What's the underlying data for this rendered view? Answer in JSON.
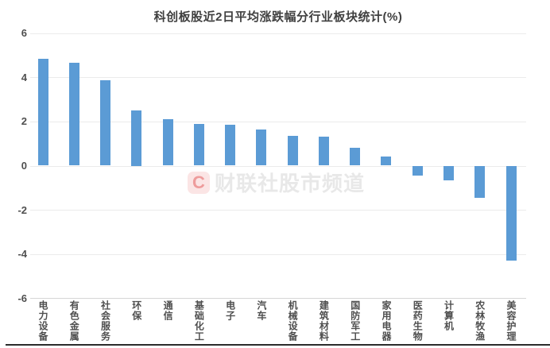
{
  "watermark": {
    "logo_letter": "C",
    "text": "财联社股市频道"
  },
  "chart_data": {
    "type": "bar",
    "title": "科创板股近2日平均涨跌幅分行业板块统计(%)",
    "categories": [
      "电力设备",
      "有色金属",
      "社会服务",
      "环保",
      "通信",
      "基础化工",
      "电子",
      "汽车",
      "机械设备",
      "建筑材料",
      "国防军工",
      "家用电器",
      "医药生物",
      "计算机",
      "农林牧渔",
      "美容护理"
    ],
    "values": [
      4.85,
      4.65,
      3.85,
      2.5,
      2.1,
      1.9,
      1.85,
      1.65,
      1.35,
      1.3,
      0.8,
      0.4,
      -0.45,
      -0.65,
      -1.45,
      -4.3
    ],
    "xlabel": "",
    "ylabel": "",
    "yticks": [
      6,
      4,
      2,
      0,
      -2,
      -4,
      -6
    ],
    "ylim": [
      -6,
      6
    ],
    "grid": true,
    "legend": "none",
    "bar_color": "#5B9BD5"
  },
  "colors": {
    "bar": "#5B9BD5",
    "grid": "#ebebeb",
    "axis_line": "#d6d6d6",
    "title_text": "#3f3f3f",
    "tick_text": "#4f4f4f",
    "watermark_text": "#e8e8e8",
    "watermark_logo_bg": "#fbe5e5",
    "watermark_logo_fg": "#ee9c9c",
    "bottom_border": "#2b2b2b"
  }
}
